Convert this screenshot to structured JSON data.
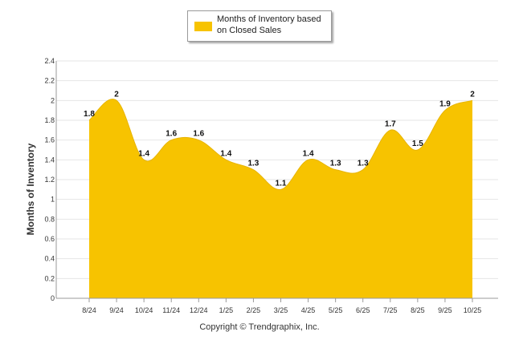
{
  "chart_data": {
    "type": "area",
    "title": "",
    "xlabel": "",
    "ylabel": "Months of Inventory",
    "ylim": [
      0,
      2.4
    ],
    "yticks": [
      "0",
      "0.2",
      "0.4",
      "0.6",
      "0.8",
      "1",
      "1.2",
      "1.4",
      "1.6",
      "1.8",
      "2",
      "2.2",
      "2.4"
    ],
    "grid": true,
    "legend_position": "top",
    "series": [
      {
        "name": "Months of Inventory based on Closed Sales",
        "color": "#F7C300",
        "categories": [
          "8/24",
          "9/24",
          "10/24",
          "11/24",
          "12/24",
          "1/25",
          "2/25",
          "3/25",
          "4/25",
          "5/25",
          "6/25",
          "7/25",
          "8/25",
          "9/25",
          "10/25"
        ],
        "values": [
          1.8,
          2,
          1.4,
          1.6,
          1.6,
          1.4,
          1.3,
          1.1,
          1.4,
          1.3,
          1.3,
          1.7,
          1.5,
          1.9,
          2
        ],
        "labels": [
          "1.8",
          "2",
          "1.4",
          "1.6",
          "1.6",
          "1.4",
          "1.3",
          "1.1",
          "1.4",
          "1.3",
          "1.3",
          "1.7",
          "1.5",
          "1.9",
          "2"
        ]
      }
    ]
  },
  "legend": {
    "line1": "Months of Inventory based",
    "line2": "on Closed Sales"
  },
  "footer": {
    "copyright": "Copyright © Trendgraphix, Inc."
  }
}
